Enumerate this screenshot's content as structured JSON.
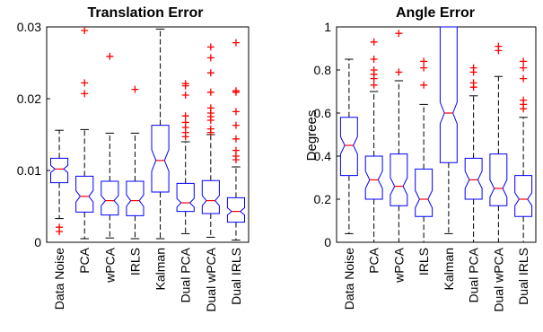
{
  "chart_data": [
    {
      "type": "box",
      "title": "Translation Error",
      "ylabel": "",
      "ylim": [
        0,
        0.03
      ],
      "yticks": [
        0,
        0.01,
        0.02,
        0.03
      ],
      "ytick_labels": [
        "0",
        "0.01",
        "0.02",
        "0.03"
      ],
      "categories": [
        "Data Noise",
        "PCA",
        "wPCA",
        "IRLS",
        "Kalman",
        "Dual PCA",
        "Dual wPCA",
        "Dual IRLS"
      ],
      "boxes": [
        {
          "q1": 0.0083,
          "median": 0.0102,
          "q3": 0.0117,
          "notch_lo": 0.0097,
          "notch_hi": 0.0107,
          "whisker_lo": 0.0033,
          "whisker_hi": 0.0156,
          "outliers": [
            0.0021,
            0.0015
          ]
        },
        {
          "q1": 0.0042,
          "median": 0.0064,
          "q3": 0.0092,
          "notch_lo": 0.0056,
          "notch_hi": 0.0072,
          "whisker_lo": 0.0005,
          "whisker_hi": 0.0157,
          "outliers": [
            0.0295,
            0.0222,
            0.0207
          ]
        },
        {
          "q1": 0.0038,
          "median": 0.0058,
          "q3": 0.0085,
          "notch_lo": 0.0051,
          "notch_hi": 0.0065,
          "whisker_lo": 0.0006,
          "whisker_hi": 0.0152,
          "outliers": [
            0.0259
          ]
        },
        {
          "q1": 0.0037,
          "median": 0.0058,
          "q3": 0.0085,
          "notch_lo": 0.005,
          "notch_hi": 0.0066,
          "whisker_lo": 0.0005,
          "whisker_hi": 0.0152,
          "outliers": [
            0.0213
          ]
        },
        {
          "q1": 0.007,
          "median": 0.0114,
          "q3": 0.0163,
          "notch_lo": 0.0099,
          "notch_hi": 0.0129,
          "whisker_lo": 0.0005,
          "whisker_hi": 0.0297,
          "outliers": []
        },
        {
          "q1": 0.0043,
          "median": 0.0055,
          "q3": 0.0082,
          "notch_lo": 0.0049,
          "notch_hi": 0.0061,
          "whisker_lo": 0.0012,
          "whisker_hi": 0.014,
          "outliers": [
            0.0221,
            0.0218,
            0.0205,
            0.0176,
            0.0167,
            0.016,
            0.0153,
            0.0147
          ]
        },
        {
          "q1": 0.004,
          "median": 0.0058,
          "q3": 0.0086,
          "notch_lo": 0.0051,
          "notch_hi": 0.0065,
          "whisker_lo": 0.0007,
          "whisker_hi": 0.015,
          "outliers": [
            0.0272,
            0.0257,
            0.0236,
            0.0209,
            0.0187,
            0.018,
            0.0175,
            0.017,
            0.0158,
            0.0153
          ]
        },
        {
          "q1": 0.0028,
          "median": 0.0043,
          "q3": 0.0062,
          "notch_lo": 0.0038,
          "notch_hi": 0.0048,
          "whisker_lo": 0.0003,
          "whisker_hi": 0.0105,
          "outliers": [
            0.0278,
            0.0211,
            0.0209,
            0.0182,
            0.0163,
            0.0144,
            0.0128,
            0.012,
            0.0115
          ]
        }
      ]
    },
    {
      "type": "box",
      "title": "Angle Error",
      "ylabel": "Degrees",
      "ylim": [
        0,
        1
      ],
      "yticks": [
        0,
        0.2,
        0.4,
        0.6,
        0.8,
        1
      ],
      "ytick_labels": [
        "0",
        "0.2",
        "0.4",
        "0.6",
        "0.8",
        "1"
      ],
      "categories": [
        "Data Noise",
        "PCA",
        "wPCA",
        "IRLS",
        "Kalman",
        "Dual PCA",
        "Dual wPCA",
        "Dual IRLS"
      ],
      "boxes": [
        {
          "q1": 0.31,
          "median": 0.45,
          "q3": 0.58,
          "notch_lo": 0.41,
          "notch_hi": 0.49,
          "whisker_lo": 0.04,
          "whisker_hi": 0.85,
          "outliers": []
        },
        {
          "q1": 0.2,
          "median": 0.29,
          "q3": 0.4,
          "notch_lo": 0.25,
          "notch_hi": 0.33,
          "whisker_lo": 0.0,
          "whisker_hi": 0.7,
          "outliers": [
            0.93,
            0.85,
            0.8,
            0.78,
            0.76,
            0.73
          ]
        },
        {
          "q1": 0.17,
          "median": 0.26,
          "q3": 0.41,
          "notch_lo": 0.22,
          "notch_hi": 0.3,
          "whisker_lo": 0.0,
          "whisker_hi": 0.75,
          "outliers": [
            0.97,
            0.79
          ]
        },
        {
          "q1": 0.12,
          "median": 0.2,
          "q3": 0.34,
          "notch_lo": 0.16,
          "notch_hi": 0.24,
          "whisker_lo": 0.0,
          "whisker_hi": 0.64,
          "outliers": [
            0.84,
            0.81,
            0.73
          ]
        },
        {
          "q1": 0.37,
          "median": 0.6,
          "q3": 1.0,
          "notch_lo": 0.55,
          "notch_hi": 0.65,
          "whisker_lo": 0.04,
          "whisker_hi": 1.0,
          "outliers": []
        },
        {
          "q1": 0.2,
          "median": 0.29,
          "q3": 0.39,
          "notch_lo": 0.25,
          "notch_hi": 0.33,
          "whisker_lo": 0.0,
          "whisker_hi": 0.68,
          "outliers": [
            0.81,
            0.79,
            0.74,
            0.72
          ]
        },
        {
          "q1": 0.17,
          "median": 0.25,
          "q3": 0.41,
          "notch_lo": 0.21,
          "notch_hi": 0.29,
          "whisker_lo": 0.0,
          "whisker_hi": 0.77,
          "outliers": [
            0.91,
            0.89
          ]
        },
        {
          "q1": 0.12,
          "median": 0.2,
          "q3": 0.31,
          "notch_lo": 0.17,
          "notch_hi": 0.23,
          "whisker_lo": 0.0,
          "whisker_hi": 0.58,
          "outliers": [
            0.84,
            0.81,
            0.76,
            0.66,
            0.64,
            0.62
          ]
        }
      ]
    }
  ],
  "colors": {
    "box": "#0000ff",
    "median": "#ff0000",
    "outlier": "#ff0000",
    "whisker": "#000000"
  }
}
